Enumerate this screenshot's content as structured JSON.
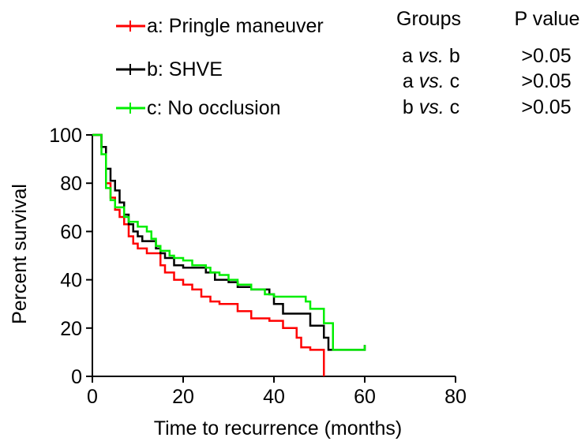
{
  "chart_data": {
    "type": "line",
    "step": true,
    "xlabel": "Time to recurrence (months)",
    "ylabel": "Percent survival",
    "xlim": [
      0,
      80
    ],
    "ylim": [
      0,
      100
    ],
    "xticks": [
      "0",
      "20",
      "40",
      "60",
      "80"
    ],
    "yticks": [
      "0",
      "20",
      "40",
      "60",
      "80",
      "100"
    ],
    "grid": false,
    "legend_position": "top-left",
    "series": [
      {
        "name": "a: Pringle maneuver",
        "color": "#ff0000",
        "points": [
          [
            0,
            100
          ],
          [
            2,
            100
          ],
          [
            2,
            95
          ],
          [
            3,
            95
          ],
          [
            3,
            80
          ],
          [
            4,
            80
          ],
          [
            4,
            74
          ],
          [
            5,
            74
          ],
          [
            5,
            69
          ],
          [
            6,
            69
          ],
          [
            6,
            66
          ],
          [
            7,
            66
          ],
          [
            7,
            63
          ],
          [
            8,
            63
          ],
          [
            8,
            58
          ],
          [
            9,
            58
          ],
          [
            9,
            55
          ],
          [
            10,
            55
          ],
          [
            10,
            53
          ],
          [
            12,
            53
          ],
          [
            12,
            51
          ],
          [
            15,
            51
          ],
          [
            15,
            46
          ],
          [
            16,
            46
          ],
          [
            16,
            43
          ],
          [
            18,
            43
          ],
          [
            18,
            40
          ],
          [
            20,
            40
          ],
          [
            20,
            38
          ],
          [
            22,
            38
          ],
          [
            22,
            36
          ],
          [
            24,
            36
          ],
          [
            24,
            33
          ],
          [
            26,
            33
          ],
          [
            26,
            31
          ],
          [
            28,
            31
          ],
          [
            28,
            30
          ],
          [
            32,
            30
          ],
          [
            32,
            27
          ],
          [
            35,
            27
          ],
          [
            35,
            24
          ],
          [
            39,
            24
          ],
          [
            39,
            23
          ],
          [
            42,
            23
          ],
          [
            42,
            20
          ],
          [
            45,
            20
          ],
          [
            45,
            16
          ],
          [
            46,
            16
          ],
          [
            46,
            12
          ],
          [
            48,
            12
          ],
          [
            48,
            11
          ],
          [
            51,
            11
          ],
          [
            51,
            0
          ]
        ]
      },
      {
        "name": "b: SHVE",
        "color": "#000000",
        "points": [
          [
            0,
            100
          ],
          [
            2,
            100
          ],
          [
            2,
            95
          ],
          [
            3,
            95
          ],
          [
            3,
            86
          ],
          [
            4,
            86
          ],
          [
            4,
            81
          ],
          [
            5,
            81
          ],
          [
            5,
            77
          ],
          [
            6,
            77
          ],
          [
            6,
            72
          ],
          [
            7,
            72
          ],
          [
            7,
            67
          ],
          [
            8,
            67
          ],
          [
            8,
            63
          ],
          [
            9,
            63
          ],
          [
            9,
            60
          ],
          [
            10,
            60
          ],
          [
            10,
            58
          ],
          [
            11,
            58
          ],
          [
            11,
            56
          ],
          [
            14,
            56
          ],
          [
            14,
            53
          ],
          [
            15,
            53
          ],
          [
            15,
            51
          ],
          [
            16,
            51
          ],
          [
            16,
            49
          ],
          [
            18,
            49
          ],
          [
            18,
            46
          ],
          [
            20,
            46
          ],
          [
            20,
            45
          ],
          [
            25,
            45
          ],
          [
            25,
            43
          ],
          [
            27,
            43
          ],
          [
            27,
            40
          ],
          [
            30,
            40
          ],
          [
            30,
            39
          ],
          [
            32,
            39
          ],
          [
            32,
            37
          ],
          [
            35,
            37
          ],
          [
            35,
            36
          ],
          [
            39,
            36
          ],
          [
            39,
            34
          ],
          [
            40,
            34
          ],
          [
            40,
            30
          ],
          [
            42,
            30
          ],
          [
            42,
            26
          ],
          [
            48,
            26
          ],
          [
            48,
            21
          ],
          [
            51,
            21
          ],
          [
            51,
            16
          ],
          [
            52,
            16
          ],
          [
            52,
            11
          ],
          [
            60,
            11
          ],
          [
            60,
            13
          ]
        ]
      },
      {
        "name": "c: No occlusion",
        "color": "#00ee00",
        "points": [
          [
            0,
            100
          ],
          [
            2,
            100
          ],
          [
            2,
            92
          ],
          [
            3,
            92
          ],
          [
            3,
            78
          ],
          [
            4,
            78
          ],
          [
            4,
            73
          ],
          [
            5,
            73
          ],
          [
            5,
            70
          ],
          [
            7,
            70
          ],
          [
            7,
            66
          ],
          [
            8,
            66
          ],
          [
            8,
            64
          ],
          [
            10,
            64
          ],
          [
            10,
            62
          ],
          [
            12,
            62
          ],
          [
            12,
            60
          ],
          [
            13,
            60
          ],
          [
            13,
            57
          ],
          [
            14,
            57
          ],
          [
            14,
            54
          ],
          [
            15,
            54
          ],
          [
            15,
            52
          ],
          [
            17,
            52
          ],
          [
            17,
            50
          ],
          [
            18,
            50
          ],
          [
            18,
            49
          ],
          [
            20,
            49
          ],
          [
            20,
            48
          ],
          [
            22,
            48
          ],
          [
            22,
            46
          ],
          [
            25,
            46
          ],
          [
            25,
            45
          ],
          [
            26,
            45
          ],
          [
            26,
            43
          ],
          [
            28,
            43
          ],
          [
            28,
            42
          ],
          [
            30,
            42
          ],
          [
            30,
            40
          ],
          [
            32,
            40
          ],
          [
            32,
            38
          ],
          [
            35,
            38
          ],
          [
            35,
            36
          ],
          [
            38,
            36
          ],
          [
            38,
            34
          ],
          [
            40,
            34
          ],
          [
            40,
            33
          ],
          [
            47,
            33
          ],
          [
            47,
            31
          ],
          [
            48,
            31
          ],
          [
            48,
            28
          ],
          [
            51,
            28
          ],
          [
            51,
            22
          ],
          [
            53,
            22
          ],
          [
            53,
            11
          ],
          [
            60,
            11
          ],
          [
            60,
            13
          ]
        ]
      }
    ],
    "legend": [
      "a: Pringle maneuver",
      "b: SHVE",
      "c: No occlusion"
    ],
    "table": {
      "headers": [
        "Groups",
        "P value"
      ],
      "rows": [
        {
          "pair_a": "a",
          "vs": "vs.",
          "pair_b": "b",
          "p": ">0.05"
        },
        {
          "pair_a": "a",
          "vs": "vs.",
          "pair_b": "c",
          "p": ">0.05"
        },
        {
          "pair_a": "b",
          "vs": "vs.",
          "pair_b": "c",
          "p": ">0.05"
        }
      ]
    }
  }
}
